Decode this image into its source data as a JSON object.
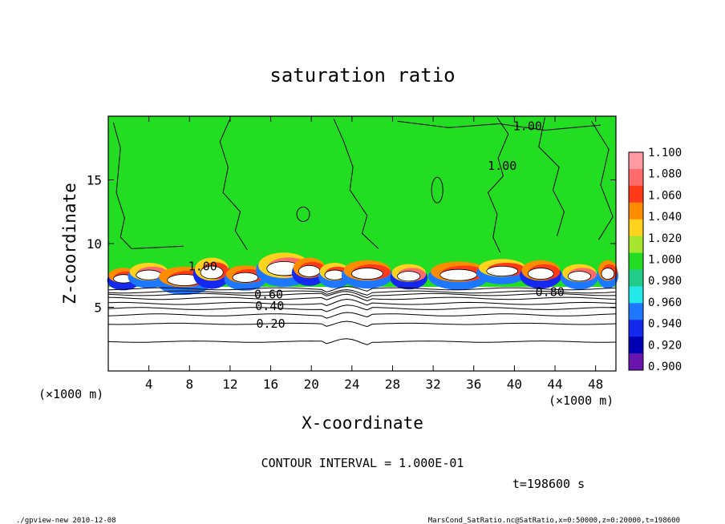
{
  "chart_data": {
    "type": "heatmap",
    "title": "saturation ratio",
    "xlabel": "X-coordinate",
    "ylabel": "Z-coordinate",
    "x_unit_left": "(×1000 m)",
    "x_unit_right": "(×1000 m)",
    "xlim": [
      0,
      50
    ],
    "ylim": [
      0,
      20
    ],
    "x_ticks": [
      "4",
      "8",
      "12",
      "16",
      "20",
      "24",
      "28",
      "32",
      "36",
      "40",
      "44",
      "48"
    ],
    "y_ticks": [
      "5",
      "10",
      "15"
    ],
    "colorbar": {
      "levels": [
        "1.100",
        "1.080",
        "1.060",
        "1.040",
        "1.020",
        "1.000",
        "0.980",
        "0.960",
        "0.940",
        "0.920",
        "0.900"
      ],
      "colors": [
        "#ff9aa4",
        "#ff6a6a",
        "#ff3a18",
        "#ff8c00",
        "#ffd21e",
        "#a6e62e",
        "#22dd22",
        "#22cc88",
        "#22e8e8",
        "#1e78ff",
        "#1428ee",
        "#0000b4",
        "#6a14b0"
      ]
    },
    "contour_labels": [
      {
        "text": "1.00",
        "x": 41.3,
        "y": 19.2
      },
      {
        "text": "1.00",
        "x": 38.8,
        "y": 16.1
      },
      {
        "text": "1.00",
        "x": 9.3,
        "y": 8.2
      },
      {
        "text": "0.80",
        "x": 43.5,
        "y": 6.2
      },
      {
        "text": "0.60",
        "x": 15.8,
        "y": 6.0
      },
      {
        "text": "0.40",
        "x": 15.9,
        "y": 5.1
      },
      {
        "text": "0.20",
        "x": 16.0,
        "y": 3.7
      }
    ],
    "contour_interval_text": "CONTOUR INTERVAL = 1.000E-01",
    "time_text": "t=198600 s"
  },
  "footer": {
    "left": "./gpview-new   2010-12-08",
    "right": "MarsCond_SatRatio.nc@SatRatio,x=0:50000,z=0:20000,t=198600"
  }
}
